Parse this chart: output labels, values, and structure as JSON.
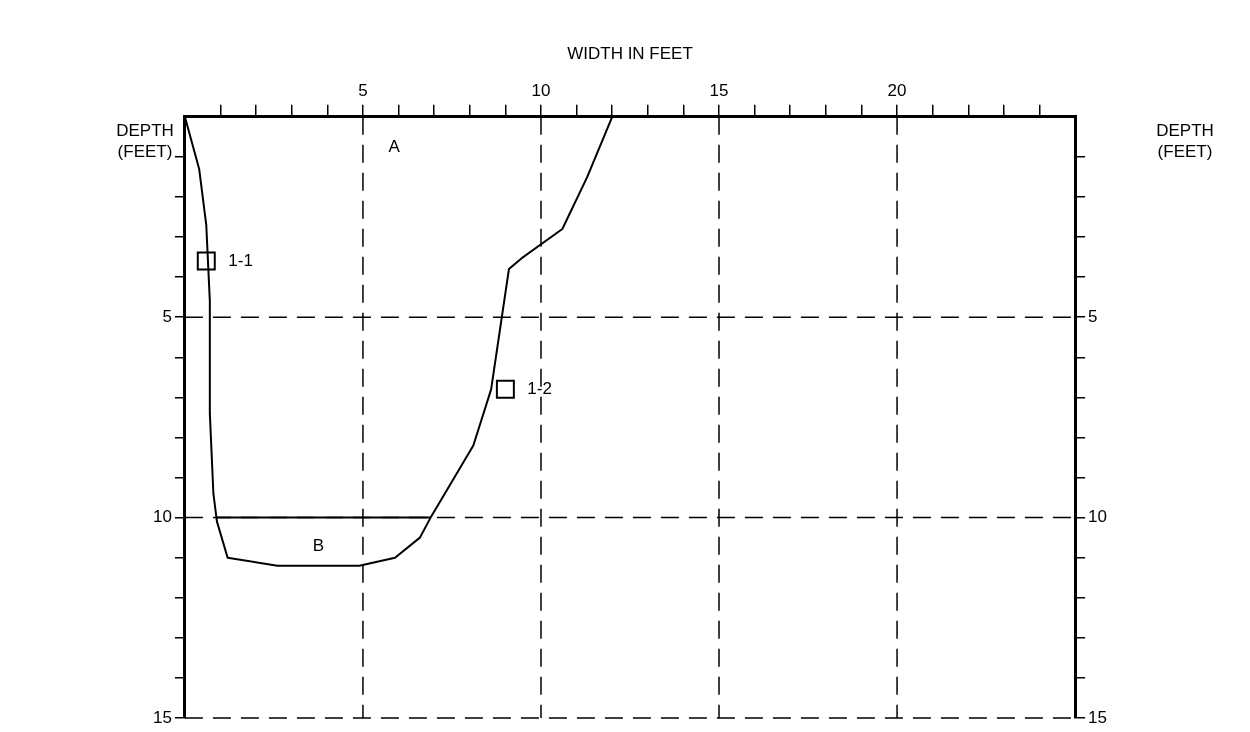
{
  "chart_data": {
    "type": "line",
    "xlabel": "WIDTH IN FEET",
    "ylabel": "DEPTH (FEET)",
    "y2label": "DEPTH (FEET)",
    "xlim": [
      0,
      25
    ],
    "ylim": [
      15,
      0
    ],
    "y2lim": [
      15,
      0
    ],
    "xticks": [
      {
        "value": 1,
        "label": null
      },
      {
        "value": 2,
        "label": null
      },
      {
        "value": 3,
        "label": null
      },
      {
        "value": 4,
        "label": null
      },
      5,
      {
        "value": 6,
        "label": null
      },
      {
        "value": 7,
        "label": null
      },
      {
        "value": 8,
        "label": null
      },
      {
        "value": 9,
        "label": null
      },
      10,
      {
        "value": 11,
        "label": null
      },
      {
        "value": 12,
        "label": null
      },
      {
        "value": 13,
        "label": null
      },
      {
        "value": 14,
        "label": null
      },
      15,
      {
        "value": 16,
        "label": null
      },
      {
        "value": 17,
        "label": null
      },
      {
        "value": 18,
        "label": null
      },
      {
        "value": 19,
        "label": null
      },
      20,
      {
        "value": 21,
        "label": null
      },
      {
        "value": 22,
        "label": null
      },
      {
        "value": 23,
        "label": null
      },
      {
        "value": 24,
        "label": null
      }
    ],
    "yticks": [
      {
        "value": 1,
        "label": null
      },
      {
        "value": 2,
        "label": null
      },
      {
        "value": 3,
        "label": null
      },
      {
        "value": 4,
        "label": null
      },
      5,
      {
        "value": 6,
        "label": null
      },
      {
        "value": 7,
        "label": null
      },
      {
        "value": 8,
        "label": null
      },
      {
        "value": 9,
        "label": null
      },
      10,
      {
        "value": 11,
        "label": null
      },
      {
        "value": 12,
        "label": null
      },
      {
        "value": 13,
        "label": null
      },
      {
        "value": 14,
        "label": null
      },
      15
    ],
    "y2ticks": [
      {
        "value": 1,
        "label": null
      },
      {
        "value": 2,
        "label": null
      },
      {
        "value": 3,
        "label": null
      },
      {
        "value": 4,
        "label": null
      },
      5,
      {
        "value": 6,
        "label": null
      },
      {
        "value": 7,
        "label": null
      },
      {
        "value": 8,
        "label": null
      },
      {
        "value": 9,
        "label": null
      },
      10,
      {
        "value": 11,
        "label": null
      },
      {
        "value": 12,
        "label": null
      },
      {
        "value": 13,
        "label": null
      },
      {
        "value": 14,
        "label": null
      },
      15
    ],
    "grid": true,
    "series": [
      {
        "color": "#000000",
        "x": [
          0,
          0.4,
          0.6,
          0.7,
          0.7,
          0.8,
          0.9,
          1.2,
          2.6,
          4.9,
          5.9,
          6.6,
          6.9,
          8.1,
          8.6,
          8.9,
          9.1,
          9.5,
          10.6,
          11.3,
          12.0
        ],
        "values": [
          0,
          1.3,
          2.7,
          4.6,
          7.4,
          9.4,
          10.1,
          11.0,
          11.2,
          11.2,
          11.0,
          10.5,
          10.0,
          8.2,
          6.8,
          5.0,
          3.8,
          3.5,
          2.8,
          1.5,
          0
        ]
      },
      {
        "color": "#000000",
        "x": [
          0.9,
          6.9
        ],
        "values": [
          10,
          10
        ]
      },
      {
        "type": "scatter",
        "color": "#000000",
        "marker": "square",
        "x": [
          0.6,
          9.0
        ],
        "values": [
          3.6,
          6.8
        ],
        "value_labels": [
          "1-1",
          "1-2"
        ]
      }
    ],
    "annotations": [
      "A",
      "B"
    ]
  }
}
